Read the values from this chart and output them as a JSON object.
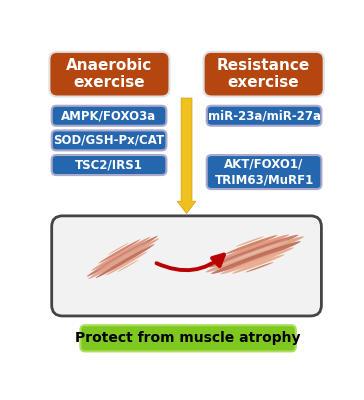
{
  "bg_color": "#ffffff",
  "orange_box_color": "#b5460f",
  "blue_box_color": "#2467ae",
  "green_box_color": "#7ec820",
  "arrow_yellow": "#f0c020",
  "arrow_yellow_dark": "#d4a000",
  "arrow_red": "#bb0000",
  "left_title": "Anaerobic\nexercise",
  "right_title": "Resistance\nexercise",
  "left_boxes": [
    "AMPK/FOXO3a",
    "SOD/GSH-Px/CAT",
    "TSC2/IRS1"
  ],
  "right_boxes": [
    "miR-23a/miR-27a",
    "AKT/FOXO1/\nTRIM63/MuRF1"
  ],
  "bottom_text": "Protect from muscle atrophy",
  "muscle_panel_bg": "#f2f2f2",
  "muscle_colors": [
    "#e8a080",
    "#d07050",
    "#c86040",
    "#e09870",
    "#d88060",
    "#c07048"
  ],
  "muscle_line_color": "#c07060",
  "fig_w": 3.64,
  "fig_h": 4.0,
  "dpi": 100
}
